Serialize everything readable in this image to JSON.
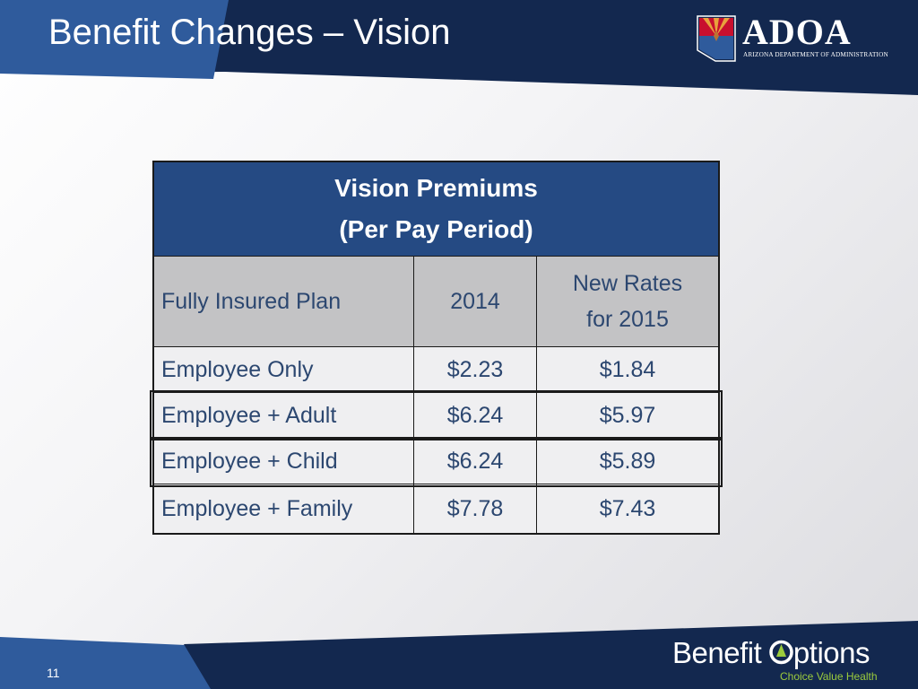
{
  "slide": {
    "title": "Benefit Changes – Vision",
    "page_number": "11"
  },
  "header_logo": {
    "name": "ADOA",
    "subtitle": "ARIZONA DEPARTMENT OF ADMINISTRATION"
  },
  "footer_logo": {
    "name_part1": "Benefit ",
    "name_part2": "ptions",
    "tagline": "Choice Value Health",
    "accent_color": "#9ccc3c"
  },
  "table": {
    "title_line1": "Vision Premiums",
    "title_line2": "(Per Pay Period)",
    "columns": {
      "plan": "Fully Insured Plan",
      "year": "2014",
      "new_rates_line1": "New Rates",
      "new_rates_line2": "for 2015"
    },
    "rows": [
      {
        "plan": "Employee Only",
        "rate_2014": "$2.23",
        "rate_2015": "$1.84"
      },
      {
        "plan": "Employee + Adult",
        "rate_2014": "$6.24",
        "rate_2015": "$5.97"
      },
      {
        "plan": "Employee + Child",
        "rate_2014": "$6.24",
        "rate_2015": "$5.89"
      },
      {
        "plan": "Employee + Family",
        "rate_2014": "$7.78",
        "rate_2015": "$7.43"
      }
    ],
    "header_color": "#254a83",
    "text_color": "#2c4770"
  },
  "colors": {
    "navy": "#13284f",
    "arizona_red": "#c8102e",
    "arizona_copper": "#e8a33d"
  }
}
